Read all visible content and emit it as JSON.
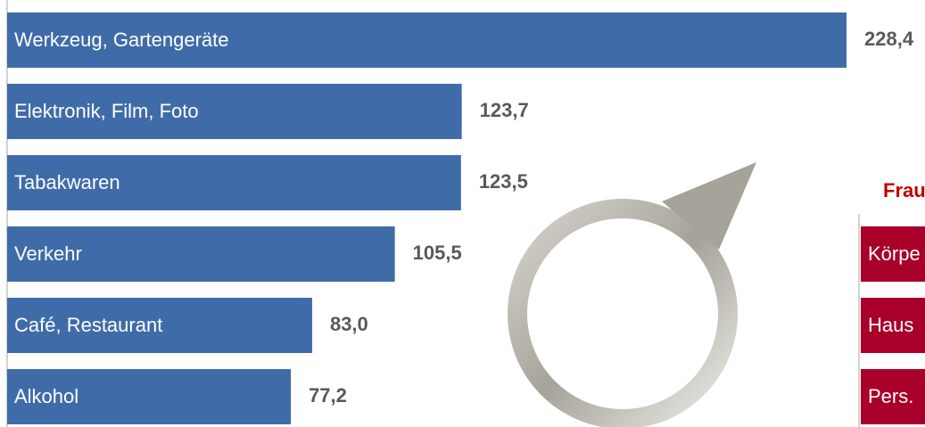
{
  "chart_data": [
    {
      "type": "bar",
      "orientation": "horizontal",
      "categories": [
        "Werkzeug, Gartengeräte",
        "Elektronik, Film, Foto",
        "Tabakwaren",
        "Verkehr",
        "Café, Restaurant",
        "Alkohol"
      ],
      "values": [
        228.4,
        123.7,
        123.5,
        105.5,
        83.0,
        77.2
      ],
      "value_labels": [
        "228,4",
        "123,7",
        "123,5",
        "105,5",
        "83,0",
        "77,2"
      ],
      "color": "#3f6ca8",
      "xlim": [
        0,
        250
      ]
    },
    {
      "type": "label-bars",
      "title": "Frau",
      "categories": [
        "Körpe",
        "Haus",
        "Pers."
      ],
      "color": "#a8002a"
    }
  ]
}
